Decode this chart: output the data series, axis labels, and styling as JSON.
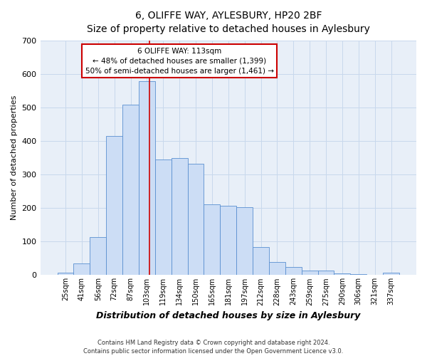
{
  "title": "6, OLIFFE WAY, AYLESBURY, HP20 2BF",
  "subtitle": "Size of property relative to detached houses in Aylesbury",
  "xlabel": "Distribution of detached houses by size in Aylesbury",
  "ylabel": "Number of detached properties",
  "bar_color": "#ccddf5",
  "bar_edge_color": "#5a8fd0",
  "grid_color": "#c8d8ec",
  "bg_color": "#e8eff8",
  "categories": [
    "25sqm",
    "41sqm",
    "56sqm",
    "72sqm",
    "87sqm",
    "103sqm",
    "119sqm",
    "134sqm",
    "150sqm",
    "165sqm",
    "181sqm",
    "197sqm",
    "212sqm",
    "228sqm",
    "243sqm",
    "259sqm",
    "275sqm",
    "290sqm",
    "306sqm",
    "321sqm",
    "337sqm"
  ],
  "values": [
    8,
    35,
    113,
    415,
    508,
    578,
    345,
    348,
    333,
    212,
    207,
    203,
    83,
    38,
    25,
    13,
    13,
    5,
    3,
    0,
    8
  ],
  "ylim": [
    0,
    700
  ],
  "yticks": [
    0,
    100,
    200,
    300,
    400,
    500,
    600,
    700
  ],
  "vline_color": "#cc0000",
  "vline_x_index": 5,
  "annotation_text": "6 OLIFFE WAY: 113sqm\n← 48% of detached houses are smaller (1,399)\n50% of semi-detached houses are larger (1,461) →",
  "annotation_box_color": "#ffffff",
  "annotation_box_edge_color": "#cc0000",
  "footer_line1": "Contains HM Land Registry data © Crown copyright and database right 2024.",
  "footer_line2": "Contains public sector information licensed under the Open Government Licence v3.0."
}
